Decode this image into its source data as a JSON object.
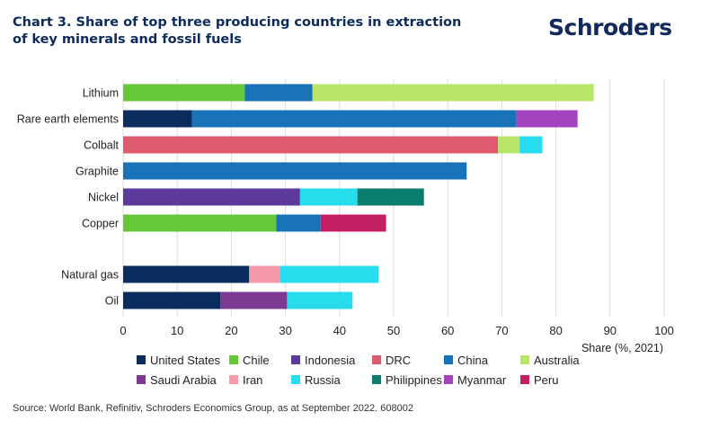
{
  "header": {
    "title_lines": [
      "Chart 3. Share of top three producing countries in extraction",
      "of key minerals and fossil fuels"
    ],
    "logo_text": "Schroders"
  },
  "colors": {
    "United States": "#0a2d5e",
    "Chile": "#66c73a",
    "Indonesia": "#5b3a9b",
    "DRC": "#e05a6e",
    "China": "#1a72b8",
    "Australia": "#b9e56a",
    "Saudi Arabia": "#7d3a92",
    "Iran": "#f49aa8",
    "Russia": "#27dcec",
    "Philippines": "#0b7c70",
    "Myanmar": "#a245bf",
    "Peru": "#c41f63"
  },
  "chart_data": {
    "type": "bar",
    "orientation": "horizontal",
    "stacked": true,
    "xlabel": "Share (%, 2021)",
    "xlim": [
      0,
      100
    ],
    "xticks": [
      0,
      10,
      20,
      30,
      40,
      50,
      60,
      70,
      80,
      90,
      100
    ],
    "grid": "vertical",
    "categories": [
      "Lithium",
      "Rare earth elements",
      "Colbalt",
      "Graphite",
      "Nickel",
      "Copper",
      "Natural gas",
      "Oil"
    ],
    "rows": [
      {
        "label": "Lithium",
        "segments": [
          {
            "series": "Chile",
            "value": 22.5
          },
          {
            "series": "China",
            "value": 12.5
          },
          {
            "series": "Australia",
            "value": 52
          }
        ]
      },
      {
        "label": "Rare earth elements",
        "segments": [
          {
            "series": "United States",
            "value": 12.7
          },
          {
            "series": "China",
            "value": 60
          },
          {
            "series": "Myanmar",
            "value": 11.3
          }
        ]
      },
      {
        "label": "Colbalt",
        "segments": [
          {
            "series": "DRC",
            "value": 69.3
          },
          {
            "series": "Australia",
            "value": 4
          },
          {
            "series": "Russia",
            "value": 4.2
          }
        ]
      },
      {
        "label": "Graphite",
        "segments": [
          {
            "series": "China",
            "value": 63.5
          }
        ]
      },
      {
        "label": "Nickel",
        "segments": [
          {
            "series": "Indonesia",
            "value": 32.7
          },
          {
            "series": "Russia",
            "value": 10.6
          },
          {
            "series": "Philippines",
            "value": 12.3
          }
        ]
      },
      {
        "label": "Copper",
        "segments": [
          {
            "series": "Chile",
            "value": 28.3
          },
          {
            "series": "China",
            "value": 8.2
          },
          {
            "series": "Peru",
            "value": 12.1
          }
        ]
      },
      {
        "label": "Natural gas",
        "segments": [
          {
            "series": "United States",
            "value": 23.3
          },
          {
            "series": "Iran",
            "value": 5.7
          },
          {
            "series": "Russia",
            "value": 18.2
          }
        ]
      },
      {
        "label": "Oil",
        "segments": [
          {
            "series": "United States",
            "value": 18
          },
          {
            "series": "Saudi Arabia",
            "value": 12.3
          },
          {
            "series": "Russia",
            "value": 12.1
          }
        ]
      }
    ],
    "legend": {
      "placement": "bottom",
      "rows": [
        [
          "United States",
          "Chile",
          "Indonesia",
          "DRC",
          "China",
          "Australia"
        ],
        [
          "Saudi Arabia",
          "Iran",
          "Russia",
          "Philippines",
          "Myanmar",
          "Peru"
        ]
      ]
    }
  },
  "footer": {
    "source": "Source: World Bank, Refinitiv, Schroders Economics Group, as at September 2022. 608002"
  }
}
